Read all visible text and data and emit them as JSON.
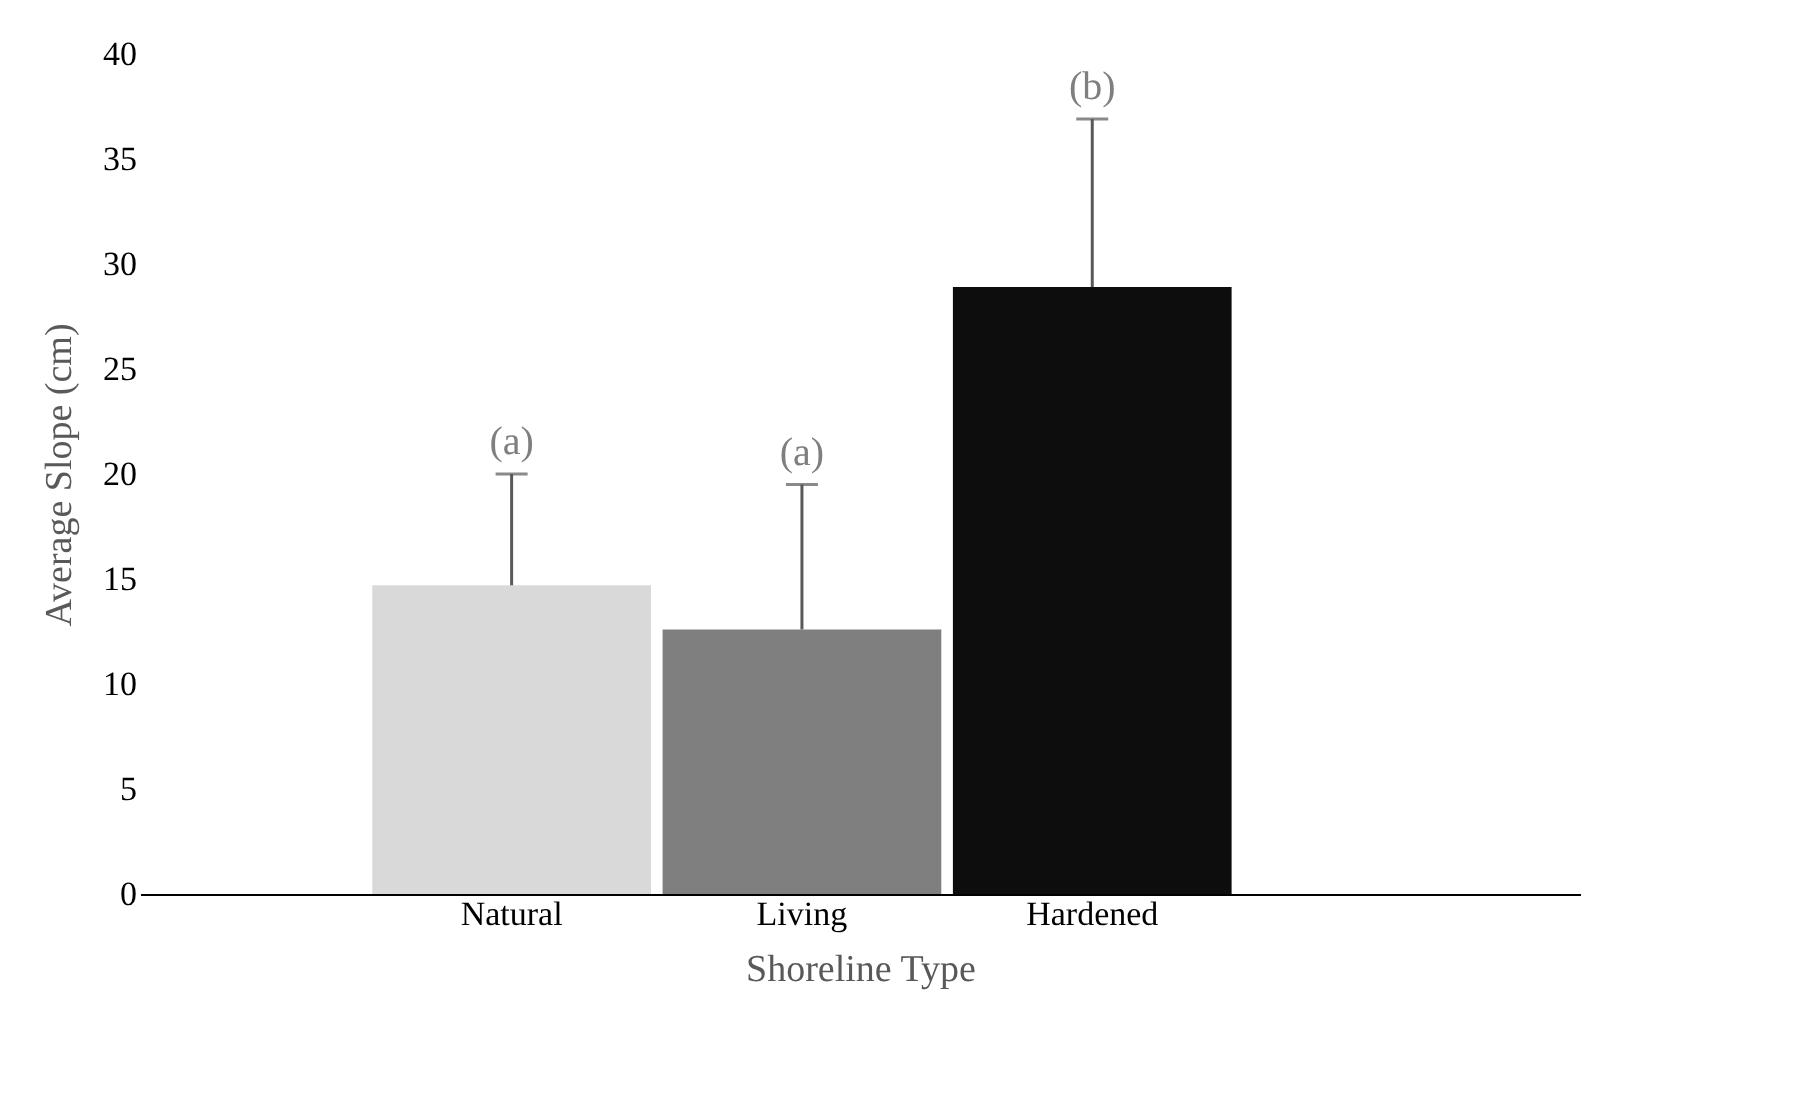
{
  "chart_data": {
    "type": "bar",
    "xlabel": "Shoreline Type",
    "ylabel": "Average Slope  (cm)",
    "categories": [
      "Natural",
      "Living",
      "Hardened"
    ],
    "values": [
      14.7,
      12.6,
      28.9
    ],
    "colors": [
      "#d9d9d9",
      "#7f7f7f",
      "#0d0d0d"
    ],
    "errors": [
      [
        14.7,
        20.0
      ],
      [
        12.6,
        19.5
      ],
      [
        28.9,
        36.9
      ]
    ],
    "annotations": [
      "(a)",
      "(a)",
      "(b)"
    ],
    "ylim": [
      0,
      40
    ],
    "yticks": [
      0,
      5,
      10,
      15,
      20,
      25,
      30,
      35,
      40
    ],
    "grid": false
  }
}
